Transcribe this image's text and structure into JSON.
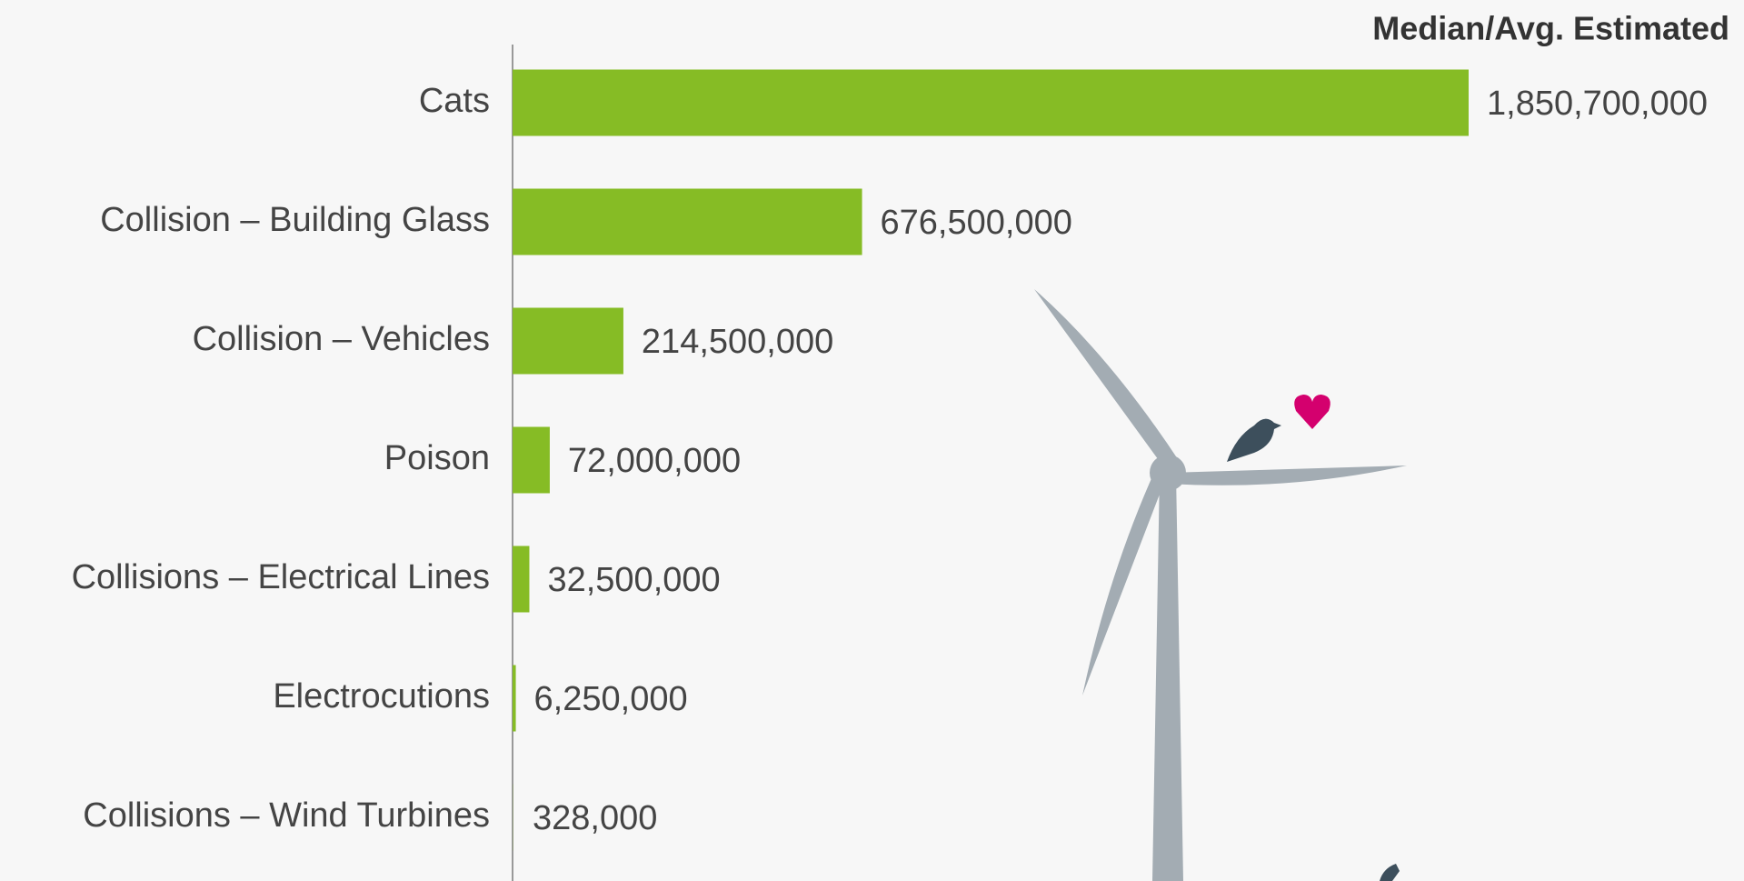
{
  "chart_data": {
    "type": "bar",
    "orientation": "horizontal",
    "subtitle": "Median/Avg. Estimated",
    "categories": [
      "Cats",
      "Collision – Building Glass",
      "Collision – Vehicles",
      "Poison",
      "Collisions – Electrical Lines",
      "Electrocutions",
      "Collisions – Wind Turbines"
    ],
    "values": [
      1850700000,
      676500000,
      214500000,
      72000000,
      32500000,
      6250000,
      328000
    ],
    "value_labels": [
      "1,850,700,000",
      "676,500,000",
      "214,500,000",
      "72,000,000",
      "32,500,000",
      "6,250,000",
      "328,000"
    ],
    "color": "#86bc25"
  }
}
